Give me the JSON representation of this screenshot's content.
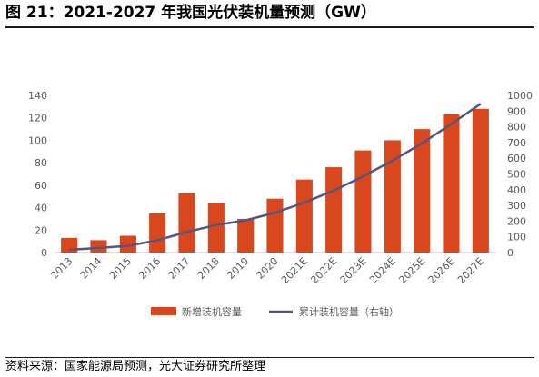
{
  "title": "图 21：2021-2027 年我国光伏装机量预测（GW）",
  "source": "资料来源：国家能源局预测，光大证券研究所整理",
  "chart_data": {
    "type": "bar+line",
    "categories": [
      "2013",
      "2014",
      "2015",
      "2016",
      "2017",
      "2018",
      "2019",
      "2020",
      "2021E",
      "2022E",
      "2023E",
      "2024E",
      "2025E",
      "2026E",
      "2027E"
    ],
    "series": [
      {
        "name": "新增装机容量",
        "type": "bar",
        "axis": "left",
        "color": "#d9471f",
        "values": [
          13,
          11,
          15,
          35,
          53,
          44,
          30,
          48,
          65,
          76,
          91,
          100,
          110,
          123,
          128
        ]
      },
      {
        "name": "累计装机容量（右轴）",
        "type": "line",
        "axis": "right",
        "color": "#55557a",
        "values": [
          18,
          29,
          43,
          78,
          131,
          175,
          205,
          253,
          318,
          394,
          485,
          585,
          695,
          818,
          946
        ]
      }
    ],
    "y_left": {
      "min": 0,
      "max": 140,
      "step": 20,
      "ticks": [
        "0",
        "20",
        "40",
        "60",
        "80",
        "100",
        "120",
        "140"
      ]
    },
    "y_right": {
      "min": 0,
      "max": 1000,
      "step": 100,
      "ticks": [
        "0",
        "100",
        "200",
        "300",
        "400",
        "500",
        "600",
        "700",
        "800",
        "900",
        "1000"
      ]
    },
    "legend_position": "bottom",
    "grid": false
  }
}
